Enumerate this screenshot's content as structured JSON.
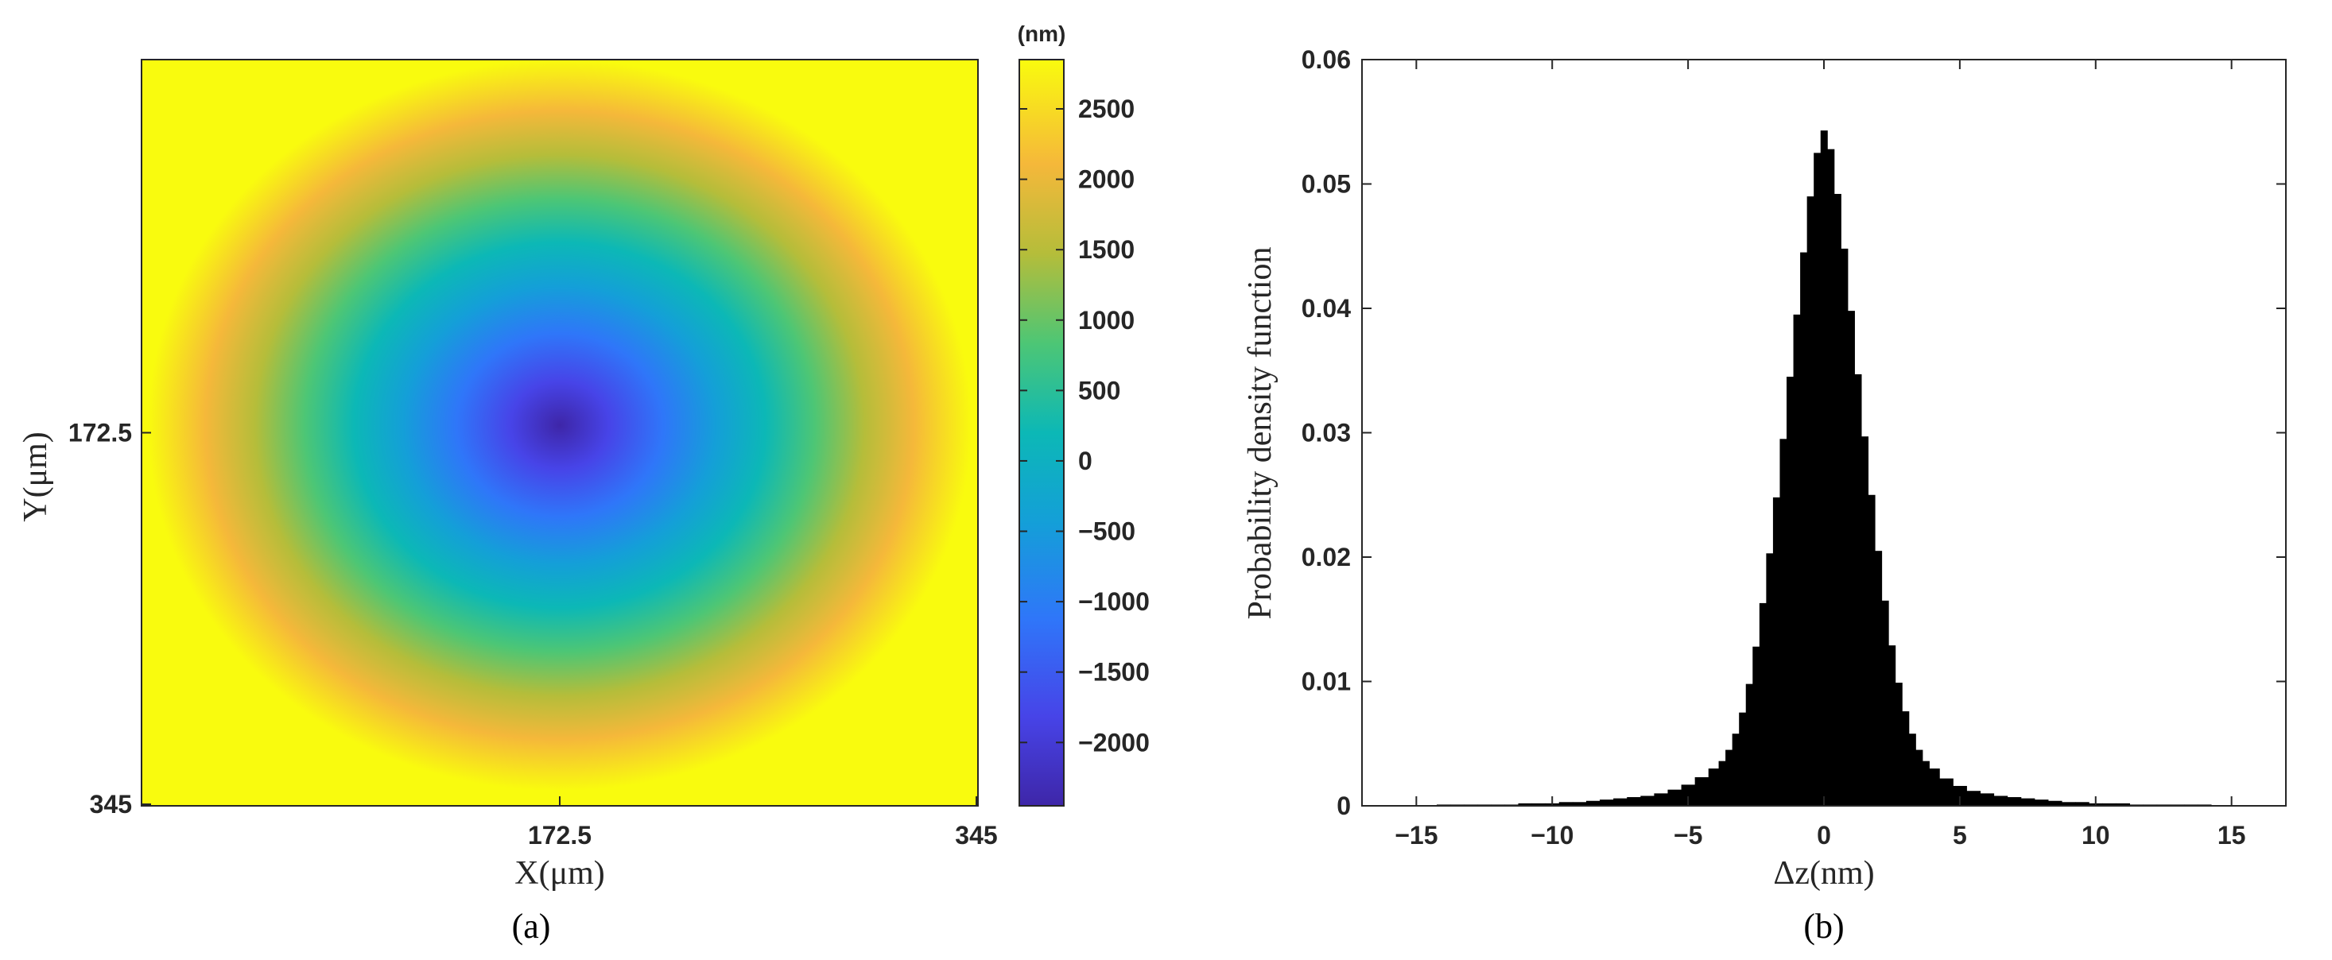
{
  "chart_data": [
    {
      "type": "heatmap",
      "panel_label": "(a)",
      "xlabel": "X(μm)",
      "ylabel": "Y(μm)",
      "x_ticks": [
        "172.5",
        "345"
      ],
      "y_ticks": [
        "172.5",
        "345"
      ],
      "x_range": [
        0,
        345
      ],
      "y_range": [
        0,
        345
      ],
      "colorbar": {
        "unit": "(nm)",
        "ticks": [
          "2500",
          "2000",
          "1500",
          "1000",
          "500",
          "0",
          "−500",
          "−1000",
          "−1500",
          "−2000"
        ],
        "tick_values": [
          2500,
          2000,
          1500,
          1000,
          500,
          0,
          -500,
          -1000,
          -1500,
          -2000
        ],
        "range": [
          -2450,
          2850
        ],
        "colormap": "parula"
      },
      "surface": {
        "shape": "concentric paraboloid",
        "center_value": -2450,
        "aperture_radius_fraction": 0.98,
        "outside_value": 2850
      }
    },
    {
      "type": "bar",
      "panel_label": "(b)",
      "xlabel": "Δz(nm)",
      "ylabel": "Probability density function",
      "x_ticks": [
        "−15",
        "−10",
        "−5",
        "0",
        "5",
        "10",
        "15"
      ],
      "x_tick_values": [
        -15,
        -10,
        -5,
        0,
        5,
        10,
        15
      ],
      "y_ticks": [
        "0",
        "0.01",
        "0.02",
        "0.03",
        "0.04",
        "0.05",
        "0.06"
      ],
      "y_tick_values": [
        0,
        0.01,
        0.02,
        0.03,
        0.04,
        0.05,
        0.06
      ],
      "xlim": [
        -17,
        17
      ],
      "ylim": [
        0,
        0.06
      ],
      "bar_color": "#000000",
      "x": [
        -15,
        -14.5,
        -14,
        -13.5,
        -13,
        -12.5,
        -12,
        -11.5,
        -11,
        -10.5,
        -10,
        -9.5,
        -9,
        -8.5,
        -8,
        -7.5,
        -7,
        -6.5,
        -6,
        -5.5,
        -5,
        -4.5,
        -4,
        -3.75,
        -3.5,
        -3.25,
        -3,
        -2.75,
        -2.5,
        -2.25,
        -2,
        -1.75,
        -1.5,
        -1.25,
        -1,
        -0.75,
        -0.5,
        -0.25,
        0,
        0.25,
        0.5,
        0.75,
        1,
        1.25,
        1.5,
        1.75,
        2,
        2.25,
        2.5,
        2.75,
        3,
        3.25,
        3.5,
        3.75,
        4,
        4.5,
        5,
        5.5,
        6,
        6.5,
        7,
        7.5,
        8,
        8.5,
        9,
        9.5,
        10,
        10.5,
        11,
        11.5,
        12,
        12.5,
        13,
        13.5,
        14,
        14.5,
        15
      ],
      "values": [
        0,
        0,
        0.0001,
        0.0001,
        0.0001,
        0.0001,
        0.0001,
        0.0001,
        0.0002,
        0.0002,
        0.0002,
        0.0003,
        0.0003,
        0.0004,
        0.0005,
        0.0006,
        0.0007,
        0.0008,
        0.001,
        0.0013,
        0.0017,
        0.0023,
        0.003,
        0.0036,
        0.0045,
        0.0058,
        0.0075,
        0.0098,
        0.0128,
        0.0163,
        0.0203,
        0.0248,
        0.0295,
        0.0345,
        0.0395,
        0.0445,
        0.049,
        0.0525,
        0.0543,
        0.0528,
        0.0492,
        0.0448,
        0.0398,
        0.0347,
        0.0297,
        0.025,
        0.0205,
        0.0165,
        0.0129,
        0.0099,
        0.0076,
        0.0058,
        0.0045,
        0.0036,
        0.003,
        0.0022,
        0.0016,
        0.0012,
        0.001,
        0.0008,
        0.0007,
        0.0006,
        0.0005,
        0.0004,
        0.0003,
        0.0003,
        0.0002,
        0.0002,
        0.0002,
        0.0001,
        0.0001,
        0.0001,
        0.0001,
        0.0001,
        0.0001,
        0,
        0
      ]
    }
  ]
}
